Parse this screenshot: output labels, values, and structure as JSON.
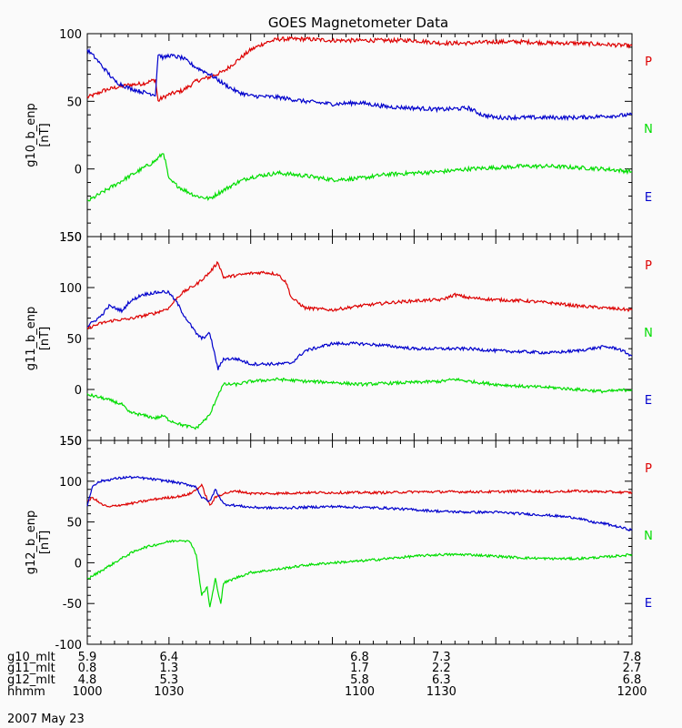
{
  "chart_data": {
    "type": "line",
    "title": "GOES Magnetometer Data",
    "date_label": "2007 May 23",
    "xrange": [
      1000,
      1200
    ],
    "series_colors": {
      "P": "#dd0000",
      "N": "#00dd00",
      "E": "#0000cc"
    },
    "panels": [
      {
        "ylabel": "g10_b_enp",
        "yunit": "[nT]",
        "ylim": [
          -50,
          100
        ],
        "yticks": [
          "100",
          "50",
          "0",
          "-50"
        ],
        "ytick_values": [
          100,
          50,
          0,
          -50
        ],
        "minor_step": 10,
        "legend": [
          "P",
          "N",
          "E"
        ],
        "series": [
          {
            "name": "P",
            "x": [
              1000,
              1003,
              1006,
              1010,
              1015,
              1020,
              1022,
              1025,
              1026,
              1027,
              1030,
              1035,
              1038,
              1040,
              1045,
              1050,
              1055,
              1060,
              1065,
              1070,
              1080,
              1090,
              1100,
              1110,
              1120,
              1130,
              1140,
              1150,
              1160,
              1170,
              1180,
              1190,
              1200
            ],
            "y": [
              53,
              55,
              58,
              60,
              62,
              63,
              64,
              66,
              50,
              52,
              55,
              58,
              62,
              65,
              68,
              72,
              80,
              88,
              93,
              96,
              96,
              95,
              95,
              95,
              95,
              93,
              93,
              94,
              94,
              93,
              93,
              92,
              91
            ]
          },
          {
            "name": "N",
            "x": [
              1000,
              1005,
              1010,
              1015,
              1020,
              1025,
              1028,
              1030,
              1035,
              1040,
              1045,
              1048,
              1055,
              1060,
              1070,
              1080,
              1090,
              1100,
              1110,
              1120,
              1130,
              1140,
              1150,
              1160,
              1170,
              1180,
              1190,
              1200
            ],
            "y": [
              -24,
              -18,
              -12,
              -6,
              0,
              6,
              12,
              -8,
              -15,
              -20,
              -22,
              -18,
              -10,
              -6,
              -3,
              -5,
              -8,
              -7,
              -4,
              -3,
              -2,
              0,
              1,
              2,
              2,
              1,
              0,
              -2
            ]
          },
          {
            "name": "E",
            "x": [
              1000,
              1003,
              1005,
              1008,
              1010,
              1015,
              1020,
              1025,
              1026,
              1028,
              1030,
              1035,
              1040,
              1045,
              1050,
              1055,
              1060,
              1070,
              1080,
              1090,
              1100,
              1110,
              1120,
              1130,
              1140,
              1145,
              1150,
              1160,
              1170,
              1180,
              1190,
              1200
            ],
            "y": [
              88,
              82,
              77,
              70,
              65,
              60,
              57,
              55,
              85,
              82,
              84,
              82,
              75,
              70,
              63,
              57,
              54,
              53,
              50,
              48,
              49,
              46,
              45,
              44,
              45,
              40,
              38,
              38,
              38,
              38,
              39,
              40
            ]
          }
        ]
      },
      {
        "ylabel": "g11_b_enp",
        "yunit": "[nT]",
        "ylim": [
          -50,
          150
        ],
        "yticks": [
          "150",
          "100",
          "50",
          "0",
          "-50"
        ],
        "ytick_values": [
          150,
          100,
          50,
          0,
          -50
        ],
        "minor_step": 10,
        "legend": [
          "P",
          "N",
          "E"
        ],
        "series": [
          {
            "name": "P",
            "x": [
              1000,
              1005,
              1010,
              1015,
              1020,
              1025,
              1030,
              1033,
              1035,
              1038,
              1040,
              1043,
              1045,
              1048,
              1050,
              1055,
              1060,
              1065,
              1070,
              1073,
              1075,
              1080,
              1090,
              1100,
              1110,
              1120,
              1130,
              1135,
              1140,
              1150,
              1160,
              1170,
              1180,
              1190,
              1200
            ],
            "y": [
              60,
              65,
              68,
              69,
              72,
              75,
              80,
              90,
              95,
              100,
              103,
              110,
              115,
              125,
              110,
              112,
              114,
              115,
              113,
              105,
              90,
              80,
              78,
              82,
              85,
              87,
              88,
              93,
              90,
              88,
              87,
              85,
              82,
              80,
              78
            ]
          },
          {
            "name": "N",
            "x": [
              1000,
              1005,
              1010,
              1013,
              1015,
              1020,
              1025,
              1028,
              1030,
              1035,
              1040,
              1045,
              1048,
              1050,
              1055,
              1060,
              1070,
              1080,
              1090,
              1100,
              1110,
              1120,
              1130,
              1135,
              1140,
              1150,
              1160,
              1170,
              1180,
              1190,
              1200
            ],
            "y": [
              -5,
              -8,
              -12,
              -15,
              -22,
              -25,
              -28,
              -26,
              -30,
              -35,
              -38,
              -25,
              -5,
              5,
              5,
              8,
              10,
              8,
              7,
              5,
              6,
              7,
              8,
              10,
              8,
              5,
              3,
              2,
              0,
              -2,
              0
            ]
          },
          {
            "name": "E",
            "x": [
              1000,
              1005,
              1008,
              1010,
              1013,
              1015,
              1020,
              1025,
              1028,
              1030,
              1033,
              1035,
              1040,
              1042,
              1045,
              1048,
              1050,
              1055,
              1060,
              1070,
              1075,
              1080,
              1090,
              1100,
              1110,
              1120,
              1130,
              1140,
              1150,
              1160,
              1170,
              1180,
              1190,
              1195,
              1200
            ],
            "y": [
              62,
              72,
              82,
              80,
              77,
              85,
              93,
              95,
              96,
              95,
              85,
              75,
              55,
              50,
              55,
              20,
              30,
              30,
              25,
              25,
              26,
              38,
              45,
              45,
              43,
              40,
              40,
              40,
              38,
              37,
              36,
              38,
              42,
              40,
              33
            ]
          }
        ]
      },
      {
        "ylabel": "g12_b_enp",
        "yunit": "[nT]",
        "ylim": [
          -100,
          150
        ],
        "yticks": [
          "150",
          "100",
          "50",
          "0",
          "-50",
          "-100"
        ],
        "ytick_values": [
          150,
          100,
          50,
          0,
          -50,
          -100
        ],
        "minor_step": 10,
        "legend": [
          "P",
          "N",
          "E"
        ],
        "series": [
          {
            "name": "P",
            "x": [
              1000,
              1002,
              1005,
              1008,
              1010,
              1015,
              1020,
              1025,
              1030,
              1035,
              1038,
              1040,
              1042,
              1045,
              1047,
              1050,
              1055,
              1060,
              1070,
              1080,
              1090,
              1100,
              1110,
              1120,
              1130,
              1140,
              1150,
              1160,
              1170,
              1180,
              1190,
              1200
            ],
            "y": [
              75,
              80,
              72,
              68,
              70,
              72,
              75,
              78,
              80,
              82,
              85,
              90,
              95,
              70,
              80,
              85,
              88,
              85,
              85,
              86,
              86,
              86,
              86,
              87,
              87,
              87,
              87,
              88,
              87,
              88,
              87,
              86
            ]
          },
          {
            "name": "N",
            "x": [
              1000,
              1005,
              1010,
              1015,
              1020,
              1025,
              1030,
              1035,
              1038,
              1040,
              1042,
              1044,
              1045,
              1047,
              1049,
              1050,
              1055,
              1060,
              1070,
              1080,
              1090,
              1100,
              1110,
              1120,
              1130,
              1140,
              1150,
              1160,
              1170,
              1180,
              1190,
              1200
            ],
            "y": [
              -20,
              -10,
              0,
              10,
              18,
              22,
              26,
              28,
              25,
              10,
              -40,
              -30,
              -55,
              -20,
              -50,
              -25,
              -18,
              -12,
              -8,
              -3,
              0,
              2,
              5,
              8,
              10,
              10,
              8,
              6,
              5,
              5,
              7,
              10
            ]
          },
          {
            "name": "E",
            "x": [
              1000,
              1002,
              1005,
              1010,
              1015,
              1020,
              1025,
              1030,
              1035,
              1038,
              1040,
              1042,
              1045,
              1047,
              1050,
              1055,
              1060,
              1070,
              1080,
              1090,
              1100,
              1110,
              1120,
              1130,
              1140,
              1150,
              1160,
              1170,
              1180,
              1185,
              1190,
              1200
            ],
            "y": [
              70,
              95,
              100,
              103,
              105,
              104,
              102,
              100,
              97,
              95,
              93,
              80,
              75,
              90,
              72,
              70,
              68,
              67,
              68,
              69,
              68,
              67,
              65,
              63,
              62,
              62,
              60,
              58,
              55,
              50,
              48,
              40
            ]
          }
        ]
      }
    ],
    "footer": {
      "labels": [
        "g10_mlt",
        "g11_mlt",
        "g12_mlt",
        "hhmm"
      ],
      "columns": [
        {
          "x": 1000,
          "values": [
            "5.9",
            "0.8",
            "4.8",
            "1000"
          ]
        },
        {
          "x": 1030,
          "values": [
            "6.4",
            "1.3",
            "5.3",
            "1030"
          ]
        },
        {
          "x": 1100,
          "values": [
            "6.8",
            "1.7",
            "5.8",
            "1100"
          ]
        },
        {
          "x": 1130,
          "values": [
            "7.3",
            "2.2",
            "6.3",
            "1130"
          ]
        },
        {
          "x": 1200,
          "values": [
            "7.8",
            "2.7",
            "6.8",
            "1200"
          ]
        }
      ]
    }
  }
}
